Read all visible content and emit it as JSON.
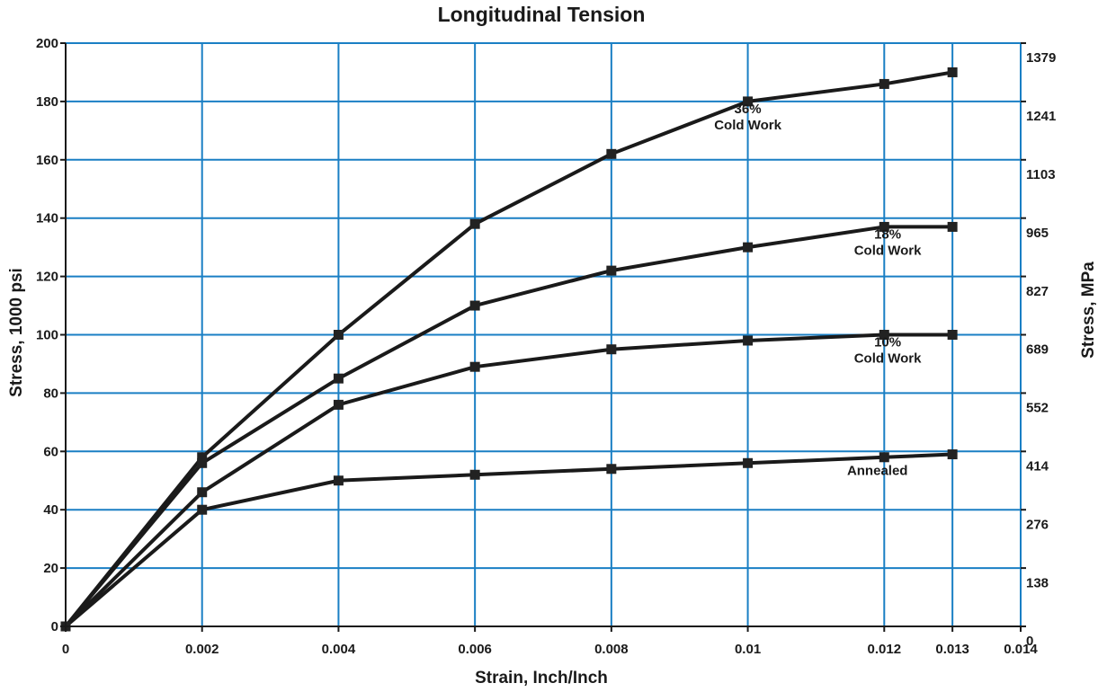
{
  "chart_data": {
    "type": "line",
    "title": "Longitudinal Tension",
    "xlabel": "Strain, Inch/Inch",
    "ylabel": "Stress, 1000 psi",
    "ylabel_right": "Stress, MPa",
    "xlim": [
      0,
      0.014
    ],
    "ylim": [
      0,
      200
    ],
    "grid": true,
    "x_ticks": [
      0,
      0.002,
      0.004,
      0.006,
      0.008,
      0.01,
      0.012,
      0.013,
      0.014
    ],
    "x_tick_labels": [
      "0",
      "0.002",
      "0.004",
      "0.006",
      "0.008",
      "0.01",
      "0.012",
      "0.013",
      "0.014"
    ],
    "y_ticks": [
      0,
      20,
      40,
      60,
      80,
      100,
      120,
      140,
      160,
      180,
      200
    ],
    "y_tick_labels": [
      "0",
      "20",
      "40",
      "60",
      "80",
      "100",
      "120",
      "140",
      "160",
      "180",
      "200"
    ],
    "y2_ticks": [
      0,
      20,
      40,
      60,
      80,
      100,
      120,
      140,
      160,
      180,
      200
    ],
    "y2_tick_labels": [
      "0",
      "138",
      "276",
      "414",
      "552",
      "689",
      "827",
      "965",
      "1103",
      "1241",
      "1379"
    ],
    "y2_tick_offset_units": -5,
    "x": [
      0,
      0.002,
      0.004,
      0.006,
      0.008,
      0.01,
      0.012,
      0.013
    ],
    "series": [
      {
        "name": "36%\nCold Work",
        "values": [
          0,
          58,
          100,
          138,
          162,
          180,
          186,
          190
        ]
      },
      {
        "name": "18%\nCold Work",
        "values": [
          0,
          56,
          85,
          110,
          122,
          130,
          137,
          137
        ]
      },
      {
        "name": "10%\nCold Work",
        "values": [
          0,
          46,
          76,
          89,
          95,
          98,
          100,
          100
        ]
      },
      {
        "name": "Annealed",
        "values": [
          0,
          40,
          50,
          52,
          54,
          56,
          58,
          59
        ]
      }
    ],
    "annotations": [
      {
        "lines": [
          "36%",
          "Cold Work"
        ],
        "x": 0.01,
        "y": 176
      },
      {
        "lines": [
          "18%",
          "Cold Work"
        ],
        "x": 0.01205,
        "y": 133
      },
      {
        "lines": [
          "10%",
          "Cold Work"
        ],
        "x": 0.01205,
        "y": 96
      },
      {
        "lines": [
          "Annealed"
        ],
        "x": 0.0119,
        "y": 52
      }
    ],
    "colors": {
      "grid": "#1a7fc4",
      "line": "#1a1a1a",
      "marker": "#222222",
      "text": "#1a1a1a"
    }
  }
}
